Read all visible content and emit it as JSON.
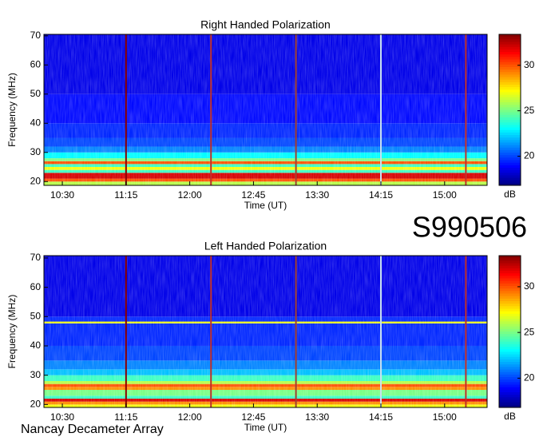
{
  "label": "S990506",
  "footer": "Nancay Decameter Array",
  "chart_data": [
    {
      "type": "spectrogram",
      "title": "Right Handed Polarization",
      "xlabel": "Time (UT)",
      "ylabel": "Frequency (MHz)",
      "xlim": [
        617,
        930
      ],
      "xticks": [
        {
          "value": 630,
          "label": "10:30"
        },
        {
          "value": 675,
          "label": "11:15"
        },
        {
          "value": 720,
          "label": "12:00"
        },
        {
          "value": 765,
          "label": "12:45"
        },
        {
          "value": 810,
          "label": "13:30"
        },
        {
          "value": 855,
          "label": "14:15"
        },
        {
          "value": 900,
          "label": "15:00"
        }
      ],
      "ylim": [
        18.7,
        70.5
      ],
      "yticks": [
        20,
        30,
        40,
        50,
        60,
        70
      ],
      "ybins": [
        18.7,
        20,
        21,
        23,
        24,
        25,
        26,
        27,
        28,
        30,
        32,
        35,
        40,
        50,
        70.5
      ],
      "values": [
        26,
        30,
        32,
        24,
        27,
        24,
        30,
        25,
        23,
        21,
        20,
        19.5,
        19,
        18.5
      ],
      "vlines": [
        675,
        735,
        795,
        855,
        915
      ],
      "vline_colors": [
        "#8b0000",
        "#c0302a",
        "#a04030",
        "#c8e0f0",
        "#c0302a"
      ],
      "clim": [
        16.8,
        33.4
      ],
      "cticks": [
        20,
        25,
        30
      ],
      "clabel": "dB"
    },
    {
      "type": "spectrogram",
      "title": "Left Handed Polarization",
      "xlabel": "Time (UT)",
      "ylabel": "Frequency (MHz)",
      "xlim": [
        617,
        930
      ],
      "xticks": [
        {
          "value": 630,
          "label": "10:30"
        },
        {
          "value": 675,
          "label": "11:15"
        },
        {
          "value": 720,
          "label": "12:00"
        },
        {
          "value": 765,
          "label": "12:45"
        },
        {
          "value": 810,
          "label": "13:30"
        },
        {
          "value": 855,
          "label": "14:15"
        },
        {
          "value": 900,
          "label": "15:00"
        }
      ],
      "ylim": [
        19,
        70.8
      ],
      "yticks": [
        20,
        30,
        40,
        50,
        60,
        70
      ],
      "ybins": [
        19,
        20,
        21,
        22,
        23,
        25,
        26,
        27,
        28,
        30,
        32,
        35,
        40,
        47.7,
        48.3,
        50,
        70.8
      ],
      "values": [
        27,
        29,
        32,
        24,
        25,
        29,
        30,
        26,
        24,
        22,
        21,
        20,
        19.5,
        27,
        19.5,
        18.5
      ],
      "vlines": [
        675,
        735,
        795,
        855,
        915
      ],
      "vline_colors": [
        "#8b0000",
        "#c0302a",
        "#a04030",
        "#c8e0f0",
        "#c0302a"
      ],
      "clim": [
        16.8,
        33.4
      ],
      "cticks": [
        20,
        25,
        30
      ],
      "clabel": "dB"
    }
  ]
}
